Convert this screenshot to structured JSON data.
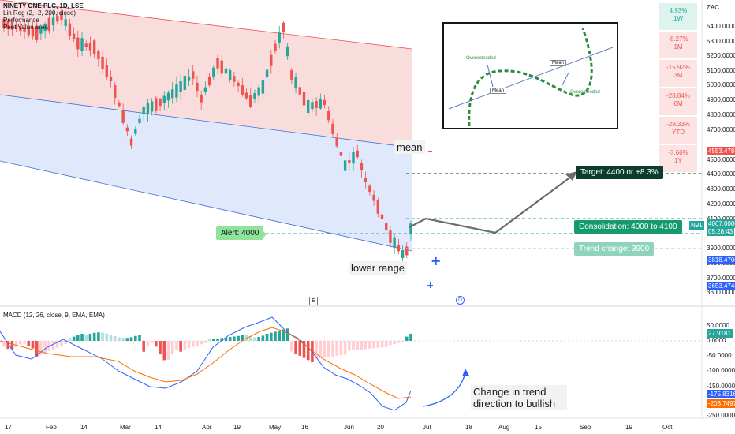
{
  "legend": {
    "symbol": "NINETY ONE PLC, 1D, LSE",
    "linreg": "Lin Reg (2, -2, 200, close)",
    "performance": "Performance",
    "peet": "Peet Value area"
  },
  "price_axis": {
    "currency": "ZAC",
    "labels": [
      "5400.0000",
      "5300.0000",
      "5200.0000",
      "5100.0000",
      "5000.0000",
      "4900.0000",
      "4800.0000",
      "4700.0000",
      "4500.0000",
      "4400.0000",
      "4300.0000",
      "4200.0000",
      "4100.0000",
      "3900.0000",
      "3800.0000",
      "3700.0000",
      "3600.0000"
    ],
    "badge_red": "4553.4784",
    "badge_current": "4067.0000",
    "badge_current_time": "05:28:43",
    "badge_symbol": "N91",
    "badge_blue1": "3818.4700",
    "badge_blue2": "3653.4740"
  },
  "macd_axis": {
    "labels": [
      "50.0000",
      "0.0000",
      "-50.0000",
      "-100.0000",
      "-150.0000",
      "-250.0000"
    ],
    "badge_green": "27.9181",
    "badge_blue": "-175.8316",
    "badge_orange": "-203.7497"
  },
  "performance": [
    {
      "value": "4.93%",
      "period": "1W",
      "color": "#26a69a"
    },
    {
      "value": "-8.27%",
      "period": "1M",
      "color": "#ef5350"
    },
    {
      "value": "-15.92%",
      "period": "3M",
      "color": "#ef5350"
    },
    {
      "value": "-28.84%",
      "period": "6M",
      "color": "#ef5350"
    },
    {
      "value": "-29.33%",
      "period": "YTD",
      "color": "#ef5350"
    },
    {
      "value": "-7.66%",
      "period": "1Y",
      "color": "#ef5350"
    }
  ],
  "annotations": {
    "mean": "mean",
    "lower_range": "lower range",
    "alert": "Alert: 4000",
    "target": "Target: 4400 or +8.3%",
    "consolidation": "Consolidation: 4000 to 4100",
    "trend_change": "Trend change: 3900",
    "change_trend": "Change in trend direction to bullish",
    "event_e": "E",
    "event_d": "D"
  },
  "inset": {
    "overextended_left": "Overextended",
    "mean_left": "Mean",
    "mean_right": "Mean",
    "overextended_right": "Overextended"
  },
  "macd_legend": "MACD (12, 26, close, 9, EMA, EMA)",
  "time_axis": [
    "17",
    "Feb",
    "14",
    "Mar",
    "14",
    "Apr",
    "19",
    "May",
    "16",
    "Jun",
    "20",
    "Jul",
    "18",
    "Aug",
    "15",
    "Sep",
    "19",
    "Oct"
  ],
  "colors": {
    "up": "#26a69a",
    "down": "#ef5350",
    "channel_upper": "#f8d7d7",
    "channel_lower": "#dde7fb",
    "target_bg": "#0b3d2e",
    "consolidation_bg": "#159a6b",
    "trend_bg": "#8fd3bd",
    "alert_bg": "#8fe39a"
  }
}
